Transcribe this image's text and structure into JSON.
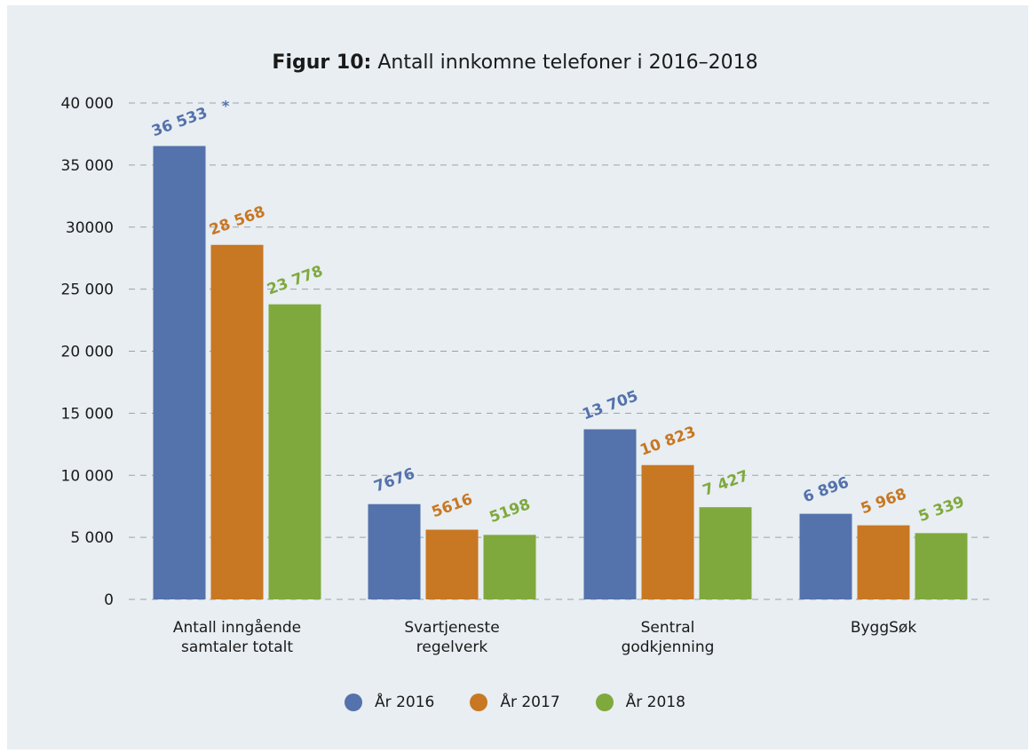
{
  "chart_data": {
    "type": "bar",
    "title_prefix": "Figur 10:",
    "title": "Antall innkomne telefoner i 2016–2018",
    "categories": [
      [
        "Antall inngående",
        "samtaler totalt"
      ],
      [
        "Svartjeneste",
        "regelverk"
      ],
      [
        "Sentral",
        "godkjenning"
      ],
      [
        "ByggSøk"
      ]
    ],
    "series": [
      {
        "name": "År 2016",
        "color": "#5472ab",
        "values": [
          36533,
          7676,
          13705,
          6896
        ],
        "labels": [
          "36 533",
          "7676",
          "13 705",
          "6 896"
        ]
      },
      {
        "name": "År 2017",
        "color": "#c87723",
        "values": [
          28568,
          5616,
          10823,
          5968
        ],
        "labels": [
          "28 568",
          "5616",
          "10 823",
          "5 968"
        ]
      },
      {
        "name": "År 2018",
        "color": "#7fa93d",
        "values": [
          23778,
          5198,
          7427,
          5339
        ],
        "labels": [
          "23 778",
          "5198",
          "7 427",
          "5 339"
        ]
      }
    ],
    "footnote_marker": "*",
    "yticks": [
      0,
      5000,
      10000,
      15000,
      20000,
      25000,
      30000,
      35000,
      40000
    ],
    "ytick_labels": [
      "0",
      "5 000",
      "10 000",
      "15 000",
      "20 000",
      "25 000",
      "30000",
      "35 000",
      "40 000"
    ],
    "ylim": [
      0,
      40000
    ],
    "grid": true,
    "legend_position": "bottom"
  }
}
